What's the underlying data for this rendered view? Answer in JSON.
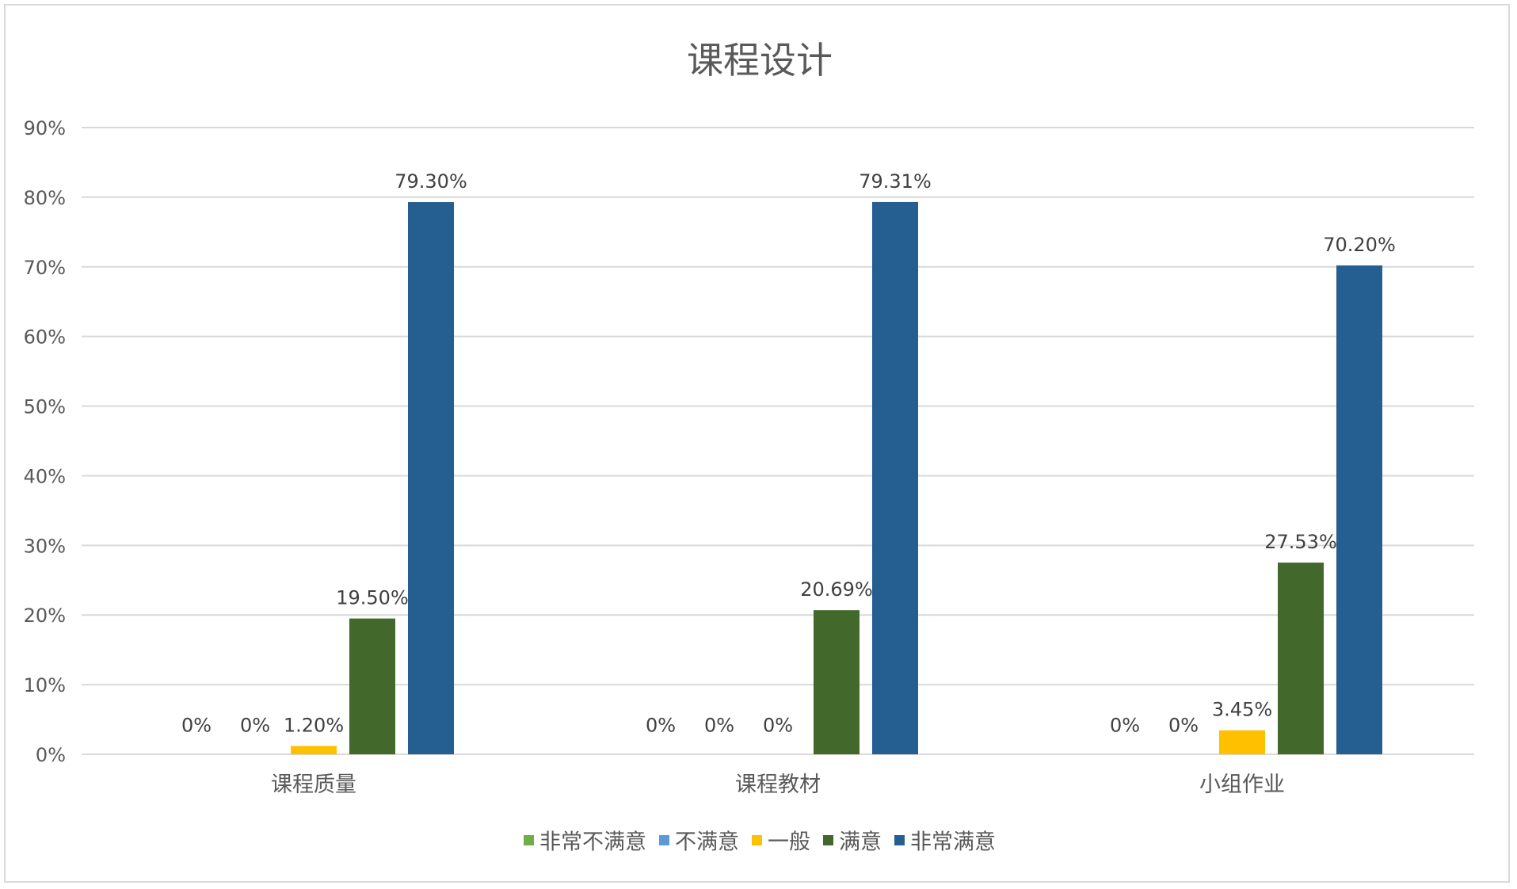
{
  "chart_data": {
    "type": "bar",
    "title": "课程设计",
    "xlabel": "",
    "ylabel": "",
    "ylim": [
      0,
      90
    ],
    "y_ticks": [
      "0%",
      "10%",
      "20%",
      "30%",
      "40%",
      "50%",
      "60%",
      "70%",
      "80%",
      "90%"
    ],
    "categories": [
      "课程质量",
      "课程教材",
      "小组作业"
    ],
    "grid": true,
    "legend_position": "bottom",
    "series": [
      {
        "name": "非常不满意",
        "color": "#70ad47",
        "values": [
          0,
          0,
          0
        ],
        "labels": [
          "0%",
          "0%",
          "0%"
        ]
      },
      {
        "name": "不满意",
        "color": "#5b9bd5",
        "values": [
          0,
          0,
          0
        ],
        "labels": [
          "0%",
          "0%",
          "0%"
        ]
      },
      {
        "name": "一般",
        "color": "#ffc000",
        "values": [
          1.2,
          0,
          3.45
        ],
        "labels": [
          "1.20%",
          "0%",
          "3.45%"
        ]
      },
      {
        "name": "满意",
        "color": "#43682b",
        "values": [
          19.5,
          20.69,
          27.53
        ],
        "labels": [
          "19.50%",
          "20.69%",
          "27.53%"
        ]
      },
      {
        "name": "非常满意",
        "color": "#255e91",
        "values": [
          79.3,
          79.31,
          70.2
        ],
        "labels": [
          "79.30%",
          "79.31%",
          "70.20%"
        ]
      }
    ]
  }
}
